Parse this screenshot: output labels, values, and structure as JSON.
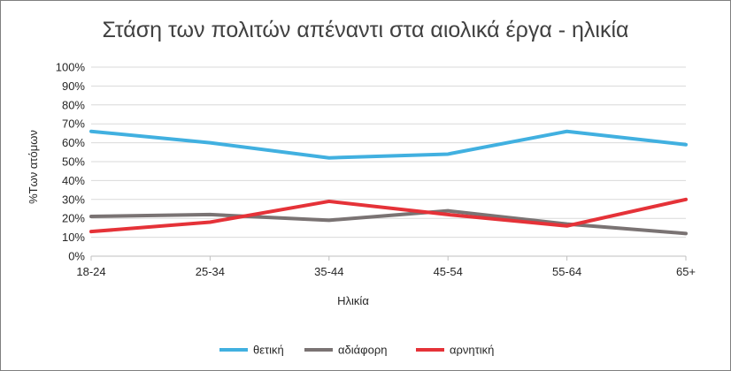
{
  "chart_data": {
    "type": "line",
    "title": "Στάση των πολιτών απέναντι στα αιολικά έργα - ηλικία",
    "xlabel": "Ηλικία",
    "ylabel": "%Των ατόμων",
    "categories": [
      "18-24",
      "25-34",
      "35-44",
      "45-54",
      "55-64",
      "65+"
    ],
    "y_ticks": [
      "0%",
      "10%",
      "20%",
      "30%",
      "40%",
      "50%",
      "60%",
      "70%",
      "80%",
      "90%",
      "100%"
    ],
    "ylim": [
      0,
      100
    ],
    "grid": true,
    "legend_position": "bottom",
    "series": [
      {
        "name": "θετική",
        "color": "#41b0e0",
        "values": [
          66,
          60,
          52,
          54,
          66,
          59
        ]
      },
      {
        "name": "αδιάφορη",
        "color": "#7a7373",
        "values": [
          21,
          22,
          19,
          24,
          17,
          12
        ]
      },
      {
        "name": "αρνητική",
        "color": "#e53238",
        "values": [
          13,
          18,
          29,
          22,
          16,
          30
        ]
      }
    ]
  }
}
